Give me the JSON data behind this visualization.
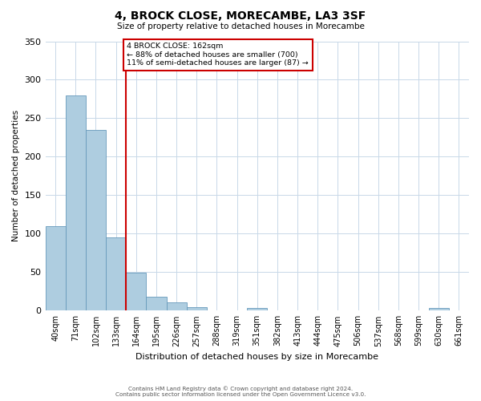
{
  "title": "4, BROCK CLOSE, MORECAMBE, LA3 3SF",
  "subtitle": "Size of property relative to detached houses in Morecambe",
  "xlabel": "Distribution of detached houses by size in Morecambe",
  "ylabel": "Number of detached properties",
  "categories": [
    "40sqm",
    "71sqm",
    "102sqm",
    "133sqm",
    "164sqm",
    "195sqm",
    "226sqm",
    "257sqm",
    "288sqm",
    "319sqm",
    "351sqm",
    "382sqm",
    "413sqm",
    "444sqm",
    "475sqm",
    "506sqm",
    "537sqm",
    "568sqm",
    "599sqm",
    "630sqm",
    "661sqm"
  ],
  "values": [
    110,
    280,
    235,
    95,
    49,
    18,
    11,
    5,
    0,
    0,
    3,
    0,
    0,
    0,
    0,
    0,
    0,
    0,
    0,
    3,
    0
  ],
  "bar_color": "#aecde0",
  "bar_edge_color": "#6699bb",
  "vline_index": 4,
  "vline_color": "#cc0000",
  "annotation_lines": [
    "4 BROCK CLOSE: 162sqm",
    "← 88% of detached houses are smaller (700)",
    "11% of semi-detached houses are larger (87) →"
  ],
  "annotation_box_color": "#cc0000",
  "ylim": [
    0,
    350
  ],
  "yticks": [
    0,
    50,
    100,
    150,
    200,
    250,
    300,
    350
  ],
  "background_color": "#ffffff",
  "grid_color": "#c8d8e8",
  "footer_lines": [
    "Contains HM Land Registry data © Crown copyright and database right 2024.",
    "Contains public sector information licensed under the Open Government Licence v3.0."
  ]
}
